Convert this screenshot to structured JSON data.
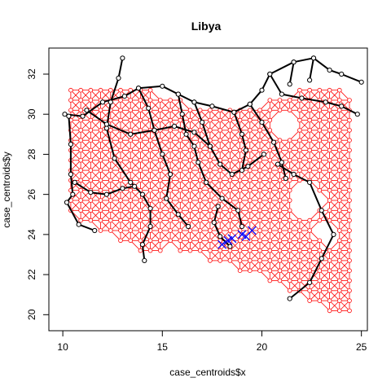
{
  "chart_data": {
    "type": "scatter",
    "title": "Libya",
    "xlabel": "case_centroids$x",
    "ylabel": "case_centroids$y",
    "xlim": [
      9.3,
      25.3
    ],
    "ylim": [
      19.2,
      33.3
    ],
    "x_ticks": [
      10,
      15,
      20,
      25
    ],
    "y_ticks": [
      20,
      22,
      24,
      26,
      28,
      30,
      32
    ],
    "grid": false,
    "legend": "none",
    "colors": {
      "grid_mesh": "#ff0000",
      "road_network": "#000000",
      "highlight": "#0000ff"
    },
    "series": [
      {
        "style": "lattice",
        "color": "#ff0000",
        "x_start": 10.4,
        "x_end": 24.8,
        "x_step": 0.5,
        "y_start": 20.2,
        "y_end": 31.2,
        "y_step": 0.5,
        "boundary": [
          [
            10.4,
            31.2
          ],
          [
            12.0,
            31.3
          ],
          [
            14.5,
            31.3
          ],
          [
            16.0,
            30.8
          ],
          [
            17.0,
            30.4
          ],
          [
            18.5,
            30.2
          ],
          [
            20.0,
            30.5
          ],
          [
            21.0,
            31.0
          ],
          [
            22.5,
            31.5
          ],
          [
            24.0,
            31.8
          ],
          [
            24.9,
            30.0
          ],
          [
            24.8,
            20.2
          ],
          [
            23.8,
            19.8
          ],
          [
            20.5,
            21.5
          ],
          [
            18.0,
            22.5
          ],
          [
            15.5,
            23.3
          ],
          [
            14.2,
            22.7
          ],
          [
            12.5,
            23.8
          ],
          [
            11.2,
            24.5
          ],
          [
            10.4,
            24.8
          ]
        ],
        "holes": [
          [
            [
              20.5,
              30.1
            ],
            [
              21.5,
              30.2
            ],
            [
              21.6,
              29.2
            ],
            [
              20.6,
              29.0
            ]
          ],
          [
            [
              21.6,
              26.2
            ],
            [
              22.7,
              26.6
            ],
            [
              23.1,
              25.6
            ],
            [
              22.6,
              24.9
            ],
            [
              21.8,
              25.2
            ]
          ],
          [
            [
              22.7,
              24.7
            ],
            [
              23.9,
              24.7
            ],
            [
              23.6,
              23.5
            ],
            [
              22.8,
              23.8
            ]
          ]
        ]
      },
      {
        "style": "network",
        "color": "#000000",
        "paths": [
          [
            [
              10.1,
              30.0
            ],
            [
              11.0,
              29.9
            ],
            [
              12.0,
              30.6
            ],
            [
              13.1,
              30.9
            ],
            [
              13.8,
              31.3
            ],
            [
              15.0,
              31.4
            ],
            [
              15.8,
              31.0
            ],
            [
              16.6,
              30.6
            ],
            [
              17.5,
              30.4
            ],
            [
              18.6,
              30.1
            ],
            [
              19.4,
              30.5
            ],
            [
              20.0,
              31.2
            ],
            [
              20.4,
              32.0
            ],
            [
              21.6,
              32.6
            ],
            [
              22.6,
              32.8
            ],
            [
              23.4,
              32.2
            ],
            [
              24.0,
              32.0
            ],
            [
              25.0,
              31.6
            ]
          ],
          [
            [
              10.3,
              29.9
            ],
            [
              10.4,
              28.5
            ],
            [
              10.4,
              27.0
            ],
            [
              10.5,
              26.0
            ],
            [
              10.2,
              25.6
            ],
            [
              10.8,
              24.5
            ],
            [
              11.6,
              24.2
            ]
          ],
          [
            [
              13.0,
              32.8
            ],
            [
              12.8,
              31.8
            ],
            [
              12.4,
              30.6
            ],
            [
              12.2,
              29.3
            ],
            [
              12.6,
              27.8
            ],
            [
              13.4,
              26.6
            ],
            [
              14.0,
              26.0
            ],
            [
              14.4,
              25.3
            ],
            [
              14.4,
              24.4
            ],
            [
              14.0,
              23.5
            ],
            [
              14.1,
              22.7
            ]
          ],
          [
            [
              13.8,
              31.3
            ],
            [
              14.3,
              30.3
            ],
            [
              14.6,
              29.2
            ],
            [
              15.0,
              28.0
            ],
            [
              15.4,
              27.0
            ],
            [
              15.2,
              25.8
            ],
            [
              15.8,
              25.0
            ],
            [
              16.3,
              24.4
            ]
          ],
          [
            [
              11.2,
              30.2
            ],
            [
              12.2,
              29.5
            ],
            [
              13.4,
              29.0
            ],
            [
              14.6,
              29.2
            ],
            [
              15.6,
              29.4
            ],
            [
              16.6,
              29.1
            ],
            [
              17.4,
              28.4
            ]
          ],
          [
            [
              15.8,
              31.0
            ],
            [
              16.0,
              30.0
            ],
            [
              16.2,
              29.0
            ],
            [
              16.6,
              28.4
            ],
            [
              16.8,
              27.6
            ],
            [
              17.2,
              26.6
            ],
            [
              18.0,
              25.8
            ],
            [
              18.8,
              25.2
            ],
            [
              19.0,
              24.4
            ]
          ],
          [
            [
              16.6,
              30.6
            ],
            [
              17.0,
              29.6
            ],
            [
              17.4,
              28.4
            ],
            [
              17.9,
              27.5
            ],
            [
              18.5,
              27.0
            ],
            [
              19.3,
              27.4
            ],
            [
              20.1,
              28.0
            ]
          ],
          [
            [
              18.6,
              30.1
            ],
            [
              19.0,
              29.0
            ],
            [
              19.2,
              28.2
            ],
            [
              19.0,
              27.2
            ]
          ],
          [
            [
              19.4,
              30.5
            ],
            [
              20.0,
              29.6
            ],
            [
              20.6,
              28.6
            ],
            [
              21.0,
              27.6
            ],
            [
              21.2,
              26.8
            ]
          ],
          [
            [
              20.4,
              32.0
            ],
            [
              21.0,
              31.0
            ],
            [
              22.0,
              30.8
            ],
            [
              23.2,
              30.6
            ],
            [
              24.0,
              30.4
            ],
            [
              24.8,
              30.0
            ]
          ],
          [
            [
              21.6,
              32.6
            ],
            [
              21.4,
              31.5
            ]
          ],
          [
            [
              22.6,
              32.8
            ],
            [
              22.4,
              31.7
            ]
          ],
          [
            [
              20.8,
              27.5
            ],
            [
              21.6,
              27.0
            ],
            [
              22.4,
              26.6
            ],
            [
              23.0,
              25.2
            ],
            [
              23.6,
              24.0
            ],
            [
              23.0,
              22.8
            ],
            [
              22.4,
              21.6
            ],
            [
              21.4,
              20.8
            ]
          ],
          [
            [
              10.6,
              26.6
            ],
            [
              11.4,
              26.1
            ],
            [
              12.2,
              26.0
            ],
            [
              13.0,
              26.3
            ],
            [
              13.6,
              26.4
            ]
          ],
          [
            [
              17.8,
              25.4
            ],
            [
              17.6,
              24.6
            ],
            [
              17.9,
              23.9
            ],
            [
              18.4,
              23.4
            ]
          ]
        ]
      },
      {
        "style": "x-marks",
        "color": "#0000ff",
        "points": [
          [
            18.0,
            23.5
          ],
          [
            18.5,
            23.8
          ],
          [
            19.0,
            24.0
          ],
          [
            19.5,
            24.2
          ],
          [
            18.3,
            23.7
          ],
          [
            19.2,
            23.9
          ]
        ]
      }
    ]
  }
}
